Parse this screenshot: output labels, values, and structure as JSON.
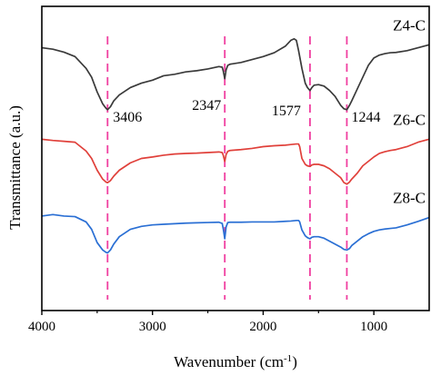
{
  "chart_data": {
    "type": "line",
    "xlabel": "Wavenumber (cm",
    "xlabel_sup": "-1",
    "xlabel_close": ")",
    "ylabel": "Transmittance (a.u.)",
    "xlim": [
      4000,
      500
    ],
    "x_reversed": true,
    "xticks": [
      4000,
      3000,
      2000,
      1000
    ],
    "xtick_labels": [
      "4000",
      "3000",
      "2000",
      "1000"
    ],
    "y_ticks_shown": false,
    "grid": false,
    "colors": {
      "Z4-C": "#3a3a3a",
      "Z6-C": "#e0403a",
      "Z8-C": "#2a6fd4",
      "markers": "#f03fa0"
    },
    "peak_markers": [
      {
        "x": 3406,
        "label": "3406"
      },
      {
        "x": 2347,
        "label": "2347"
      },
      {
        "x": 1577,
        "label": "1577"
      },
      {
        "x": 1244,
        "label": "1244"
      }
    ],
    "series": [
      {
        "name": "Z4-C",
        "x": [
          4000,
          3900,
          3800,
          3700,
          3600,
          3550,
          3500,
          3450,
          3420,
          3406,
          3380,
          3350,
          3300,
          3200,
          3100,
          3000,
          2900,
          2800,
          2700,
          2600,
          2500,
          2400,
          2370,
          2360,
          2347,
          2335,
          2320,
          2300,
          2200,
          2100,
          2000,
          1900,
          1800,
          1750,
          1720,
          1700,
          1680,
          1650,
          1620,
          1600,
          1577,
          1560,
          1540,
          1500,
          1450,
          1400,
          1350,
          1300,
          1270,
          1244,
          1220,
          1200,
          1150,
          1100,
          1050,
          1000,
          950,
          900,
          850,
          800,
          700,
          600,
          500
        ],
        "y": [
          64,
          63.5,
          62.5,
          61,
          57,
          54,
          49,
          45,
          43.5,
          43,
          44,
          46,
          48,
          50.5,
          52,
          53,
          54.5,
          55,
          55.8,
          56.2,
          56.8,
          57.6,
          57.4,
          56,
          53.5,
          56.5,
          58,
          58.4,
          59,
          60,
          61,
          62.3,
          64.5,
          66.5,
          67,
          66.5,
          63,
          57,
          52,
          50.5,
          49.5,
          50.5,
          51.3,
          51.5,
          51,
          49.5,
          47.5,
          44.5,
          43.3,
          43,
          44.5,
          46,
          50,
          54,
          58,
          60.5,
          61.5,
          62,
          62.3,
          62.4,
          63,
          64,
          65
        ]
      },
      {
        "name": "Z6-C",
        "x": [
          4000,
          3900,
          3800,
          3700,
          3600,
          3550,
          3500,
          3450,
          3420,
          3406,
          3380,
          3350,
          3300,
          3200,
          3100,
          3000,
          2900,
          2800,
          2700,
          2600,
          2500,
          2400,
          2370,
          2360,
          2347,
          2335,
          2320,
          2300,
          2200,
          2100,
          2000,
          1900,
          1800,
          1750,
          1700,
          1680,
          1670,
          1650,
          1620,
          1600,
          1577,
          1560,
          1540,
          1500,
          1450,
          1400,
          1350,
          1300,
          1270,
          1244,
          1220,
          1200,
          1150,
          1100,
          1050,
          1000,
          950,
          900,
          850,
          800,
          700,
          600,
          500
        ],
        "y": [
          33,
          32.6,
          32.3,
          32,
          29,
          26.5,
          22.5,
          19.5,
          18.5,
          18.3,
          19,
          20.5,
          22.5,
          25,
          26.5,
          27,
          27.6,
          28,
          28.2,
          28.3,
          28.5,
          28.7,
          28.5,
          27.5,
          25.5,
          27.8,
          28.9,
          29.2,
          29.5,
          29.9,
          30.5,
          30.8,
          31,
          31.2,
          31.4,
          31.4,
          30.5,
          26.5,
          24.5,
          24,
          23.8,
          24.3,
          24.5,
          24.5,
          24,
          23,
          21.5,
          20,
          18.3,
          17.8,
          18.5,
          19.5,
          21.5,
          24,
          25.5,
          27,
          28.2,
          28.8,
          29.2,
          29.5,
          30.5,
          32,
          33
        ]
      },
      {
        "name": "Z8-C",
        "x": [
          4000,
          3900,
          3800,
          3700,
          3600,
          3550,
          3500,
          3450,
          3420,
          3406,
          3380,
          3350,
          3300,
          3200,
          3100,
          3000,
          2900,
          2800,
          2700,
          2600,
          2500,
          2400,
          2370,
          2360,
          2347,
          2335,
          2320,
          2300,
          2200,
          2100,
          2000,
          1900,
          1800,
          1750,
          1700,
          1680,
          1670,
          1650,
          1620,
          1600,
          1577,
          1560,
          1540,
          1500,
          1450,
          1400,
          1350,
          1300,
          1270,
          1244,
          1220,
          1200,
          1150,
          1100,
          1050,
          1000,
          950,
          900,
          850,
          800,
          700,
          600,
          500
        ],
        "y": [
          7,
          7.5,
          7,
          6.8,
          5,
          2.5,
          -2,
          -4.5,
          -5.3,
          -5.5,
          -4.5,
          -2.5,
          0,
          2.5,
          3.5,
          4,
          4.2,
          4.4,
          4.6,
          4.7,
          4.8,
          4.9,
          4.5,
          2.5,
          -0.7,
          3.3,
          4.8,
          4.9,
          4.9,
          5,
          5,
          5,
          5.2,
          5.3,
          5.5,
          5.5,
          5,
          2.3,
          0.3,
          -0.3,
          -0.7,
          -0.2,
          0,
          0,
          -0.5,
          -1.5,
          -2.5,
          -3.5,
          -4.3,
          -4.5,
          -4,
          -3,
          -1.5,
          0,
          1,
          1.8,
          2.3,
          2.6,
          2.8,
          3,
          4,
          5.2,
          6.5
        ]
      }
    ],
    "ylim": [
      -25,
      78
    ]
  }
}
